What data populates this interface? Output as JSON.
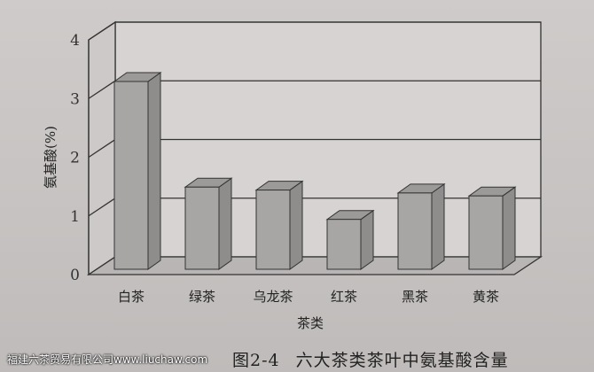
{
  "chart_data": {
    "type": "bar",
    "style": "3d",
    "categories": [
      "白茶",
      "绿茶",
      "乌龙茶",
      "红茶",
      "黑茶",
      "黄茶"
    ],
    "values": [
      3.2,
      1.4,
      1.35,
      0.85,
      1.3,
      1.25
    ],
    "xlabel": "茶类",
    "ylabel": "氨基酸(%)",
    "ylim": [
      0,
      4
    ],
    "yticks": [
      "0",
      "1",
      "2",
      "3",
      "4"
    ],
    "grid": true,
    "bar_color": "#a8a5a5"
  },
  "caption": {
    "number": "图2-4",
    "title": "六大茶类茶叶中氨基酸含量"
  },
  "watermark": "福建六茶贸易有限公司www.liuchaw.com"
}
